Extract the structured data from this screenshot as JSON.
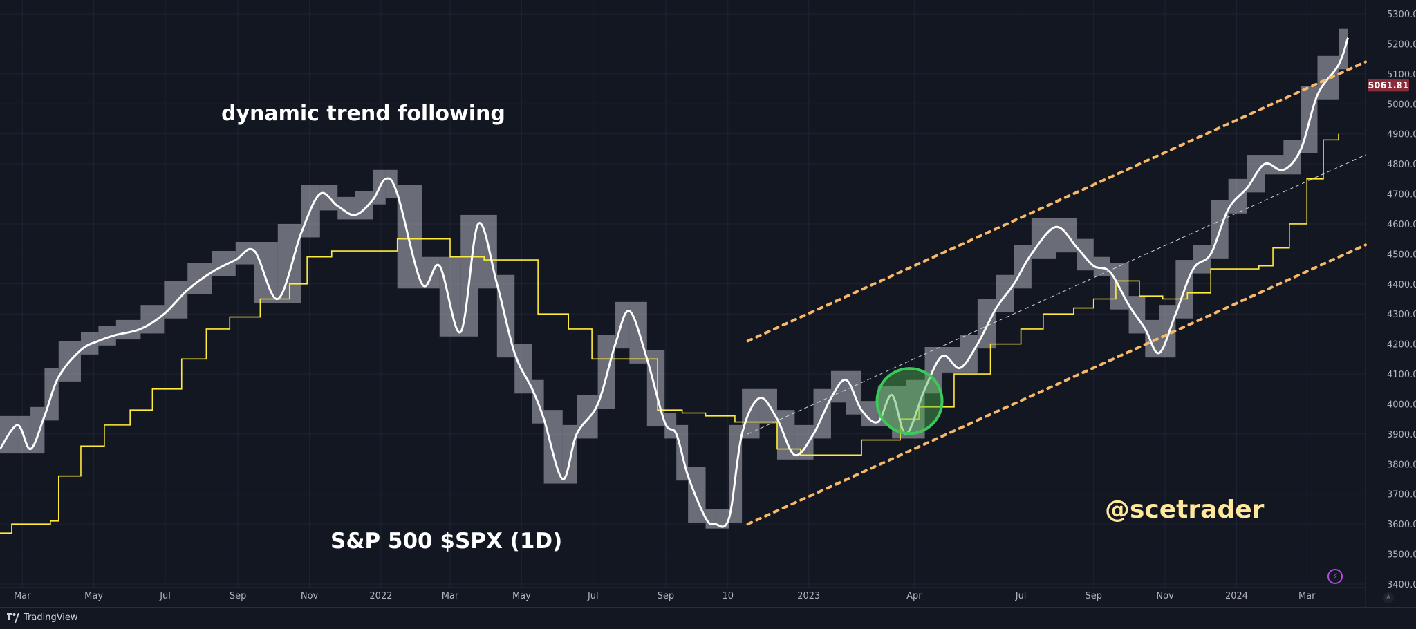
{
  "chart_data": {
    "type": "line",
    "title": "dynamic trend following",
    "subtitle": "S&P 500 $SPX (1D)",
    "watermark": "@scetrader",
    "ylim": [
      3400,
      5300
    ],
    "x_range": [
      "2021-02-10",
      "2024-04-20"
    ],
    "grid": true,
    "yticks": [
      "5300.00",
      "5200.00",
      "5100.00",
      "5000.00",
      "4900.00",
      "4800.00",
      "4700.00",
      "4600.00",
      "4500.00",
      "4400.00",
      "4300.00",
      "4200.00",
      "4100.00",
      "4000.00",
      "3900.00",
      "3800.00",
      "3700.00",
      "3600.00",
      "3500.00",
      "3400.00"
    ],
    "xticks": [
      {
        "label": "Mar",
        "date": "2021-03-01"
      },
      {
        "label": "May",
        "date": "2021-05-01"
      },
      {
        "label": "Jul",
        "date": "2021-07-01"
      },
      {
        "label": "Sep",
        "date": "2021-09-01"
      },
      {
        "label": "Nov",
        "date": "2021-11-01"
      },
      {
        "label": "2022",
        "date": "2022-01-01"
      },
      {
        "label": "Mar",
        "date": "2022-03-01"
      },
      {
        "label": "May",
        "date": "2022-05-01"
      },
      {
        "label": "Jul",
        "date": "2022-07-01"
      },
      {
        "label": "Sep",
        "date": "2022-09-01"
      },
      {
        "label": "10",
        "date": "2022-10-24"
      },
      {
        "label": "2023",
        "date": "2023-01-01"
      },
      {
        "label": "Apr",
        "date": "2023-04-01"
      },
      {
        "label": "Jul",
        "date": "2023-07-01"
      },
      {
        "label": "Sep",
        "date": "2023-09-01"
      },
      {
        "label": "Nov",
        "date": "2023-11-01"
      },
      {
        "label": "2024",
        "date": "2024-01-01"
      },
      {
        "label": "Mar",
        "date": "2024-03-01"
      }
    ],
    "last_price": "5061.81",
    "colors": {
      "price": "#ffffff",
      "trend": "#ffeb3b",
      "band": "#b2b5be",
      "channel": "#f7b867",
      "highlight": "#4caf50",
      "last_price_bg": "#8b2c3a"
    },
    "series": [
      {
        "type": "line",
        "x": [
          "2021-02-10",
          "2021-02-25",
          "2021-03-08",
          "2021-03-20",
          "2021-04-01",
          "2021-04-20",
          "2021-05-05",
          "2021-05-20",
          "2021-06-10",
          "2021-06-30",
          "2021-07-20",
          "2021-08-10",
          "2021-08-30",
          "2021-09-15",
          "2021-10-05",
          "2021-10-25",
          "2021-11-10",
          "2021-11-25",
          "2021-12-10",
          "2021-12-25",
          "2022-01-05",
          "2022-01-15",
          "2022-02-05",
          "2022-02-20",
          "2022-03-10",
          "2022-03-25",
          "2022-04-10",
          "2022-04-25",
          "2022-05-10",
          "2022-05-20",
          "2022-06-05",
          "2022-06-17",
          "2022-07-05",
          "2022-07-20",
          "2022-08-01",
          "2022-08-16",
          "2022-08-31",
          "2022-09-10",
          "2022-09-20",
          "2022-10-05",
          "2022-10-13",
          "2022-10-25",
          "2022-11-05",
          "2022-11-20",
          "2022-12-05",
          "2022-12-20",
          "2023-01-05",
          "2023-01-20",
          "2023-02-02",
          "2023-02-15",
          "2023-03-01",
          "2023-03-13",
          "2023-03-25",
          "2023-04-10",
          "2023-04-25",
          "2023-05-10",
          "2023-05-25",
          "2023-06-10",
          "2023-06-25",
          "2023-07-10",
          "2023-07-31",
          "2023-08-18",
          "2023-09-01",
          "2023-09-15",
          "2023-10-01",
          "2023-10-15",
          "2023-10-27",
          "2023-11-10",
          "2023-11-25",
          "2023-12-10",
          "2023-12-25",
          "2024-01-10",
          "2024-01-25",
          "2024-02-10",
          "2024-02-25",
          "2024-03-10",
          "2024-03-28",
          "2024-04-05"
        ],
        "y": [
          3850,
          3930,
          3850,
          3960,
          4090,
          4180,
          4210,
          4230,
          4250,
          4300,
          4380,
          4440,
          4480,
          4510,
          4350,
          4570,
          4700,
          4660,
          4630,
          4680,
          4750,
          4700,
          4400,
          4460,
          4240,
          4600,
          4400,
          4170,
          4050,
          3950,
          3750,
          3900,
          4000,
          4200,
          4310,
          4150,
          3940,
          3900,
          3760,
          3620,
          3600,
          3620,
          3900,
          4020,
          3950,
          3830,
          3900,
          4020,
          4080,
          3980,
          3940,
          4030,
          3900,
          4050,
          4160,
          4120,
          4200,
          4320,
          4400,
          4500,
          4590,
          4520,
          4460,
          4440,
          4330,
          4250,
          4170,
          4300,
          4450,
          4500,
          4650,
          4720,
          4800,
          4780,
          4850,
          5030,
          5130,
          5220
        ]
      },
      {
        "type": "line",
        "x": [
          "2021-02-10",
          "2021-02-20",
          "2021-03-25",
          "2021-04-01",
          "2021-04-20",
          "2021-05-10",
          "2021-06-01",
          "2021-06-20",
          "2021-07-15",
          "2021-08-05",
          "2021-08-25",
          "2021-09-20",
          "2021-10-15",
          "2021-10-30",
          "2021-11-20",
          "2021-12-20",
          "2022-01-15",
          "2022-02-10",
          "2022-03-01",
          "2022-03-30",
          "2022-04-25",
          "2022-05-15",
          "2022-06-10",
          "2022-06-30",
          "2022-07-20",
          "2022-08-10",
          "2022-08-25",
          "2022-09-15",
          "2022-10-05",
          "2022-10-30",
          "2022-11-20",
          "2022-12-05",
          "2022-12-25",
          "2023-01-20",
          "2023-02-15",
          "2023-03-05",
          "2023-03-20",
          "2023-04-05",
          "2023-05-05",
          "2023-06-05",
          "2023-07-01",
          "2023-07-20",
          "2023-08-15",
          "2023-09-01",
          "2023-09-20",
          "2023-10-10",
          "2023-10-30",
          "2023-11-20",
          "2023-12-10",
          "2024-01-01",
          "2024-01-20",
          "2024-02-01",
          "2024-02-15",
          "2024-03-01",
          "2024-03-15",
          "2024-03-28"
        ],
        "y": [
          3570,
          3600,
          3610,
          3760,
          3860,
          3930,
          3980,
          4050,
          4150,
          4250,
          4290,
          4350,
          4400,
          4490,
          4510,
          4510,
          4550,
          4550,
          4490,
          4480,
          4480,
          4300,
          4250,
          4150,
          4150,
          4150,
          3980,
          3970,
          3960,
          3940,
          3940,
          3850,
          3830,
          3830,
          3880,
          3880,
          3950,
          3990,
          4100,
          4200,
          4250,
          4300,
          4320,
          4350,
          4410,
          4360,
          4350,
          4370,
          4450,
          4450,
          4460,
          4520,
          4600,
          4750,
          4880,
          4900
        ]
      }
    ],
    "channel": [
      {
        "label": "upper",
        "from": [
          "2022-11-10",
          4210
        ],
        "to": [
          "2024-04-20",
          5140
        ]
      },
      {
        "label": "middle",
        "from": [
          "2022-11-10",
          3900
        ],
        "to": [
          "2024-04-20",
          4830
        ]
      },
      {
        "label": "lower",
        "from": [
          "2022-11-10",
          3600
        ],
        "to": [
          "2024-04-20",
          4530
        ]
      }
    ],
    "highlight_circle": {
      "date": "2023-03-28",
      "value": 4010
    }
  },
  "footer": {
    "brand": "TradingView"
  },
  "icons": {
    "brand": "tradingview-logo-icon",
    "flash": "lightning-icon",
    "auto": "auto-scale-icon"
  },
  "buttons": {
    "auto_label": "A"
  }
}
